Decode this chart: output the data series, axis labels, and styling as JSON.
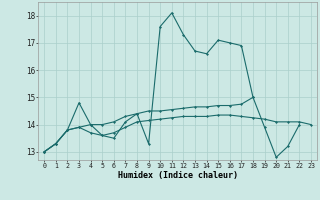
{
  "xlabel": "Humidex (Indice chaleur)",
  "background_color": "#cce8e4",
  "grid_color": "#aacfcb",
  "line_color": "#1a6b6b",
  "xlim": [
    -0.5,
    23.5
  ],
  "ylim": [
    12.7,
    18.5
  ],
  "xticks": [
    0,
    1,
    2,
    3,
    4,
    5,
    6,
    7,
    8,
    9,
    10,
    11,
    12,
    13,
    14,
    15,
    16,
    17,
    18,
    19,
    20,
    21,
    22,
    23
  ],
  "yticks": [
    13,
    14,
    15,
    16,
    17,
    18
  ],
  "series1_x": [
    0,
    1,
    2,
    3,
    4,
    5,
    6,
    7,
    8,
    9,
    10,
    11,
    12,
    13,
    14,
    15,
    16,
    17,
    18,
    19,
    20,
    21,
    22
  ],
  "series1_y": [
    13.0,
    13.3,
    13.8,
    13.9,
    14.0,
    13.6,
    13.5,
    14.1,
    14.4,
    13.3,
    17.6,
    18.1,
    17.3,
    16.7,
    16.6,
    17.1,
    17.0,
    16.9,
    15.0,
    13.9,
    12.8,
    13.2,
    14.0
  ],
  "series2_x": [
    0,
    1,
    2,
    3,
    4,
    5,
    6,
    7,
    8,
    9,
    10,
    11,
    12,
    13,
    14,
    15,
    16,
    17,
    18
  ],
  "series2_y": [
    13.0,
    13.3,
    13.8,
    14.8,
    14.0,
    14.0,
    14.1,
    14.3,
    14.4,
    14.5,
    14.5,
    14.55,
    14.6,
    14.65,
    14.65,
    14.7,
    14.7,
    14.75,
    15.0
  ],
  "series3_x": [
    0,
    1,
    2,
    3,
    4,
    5,
    6,
    7,
    8,
    9,
    10,
    11,
    12,
    13,
    14,
    15,
    16,
    17,
    18,
    19,
    20,
    21,
    22,
    23
  ],
  "series3_y": [
    13.0,
    13.3,
    13.8,
    13.9,
    13.7,
    13.6,
    13.7,
    13.9,
    14.1,
    14.15,
    14.2,
    14.25,
    14.3,
    14.3,
    14.3,
    14.35,
    14.35,
    14.3,
    14.25,
    14.2,
    14.1,
    14.1,
    14.1,
    14.0
  ]
}
